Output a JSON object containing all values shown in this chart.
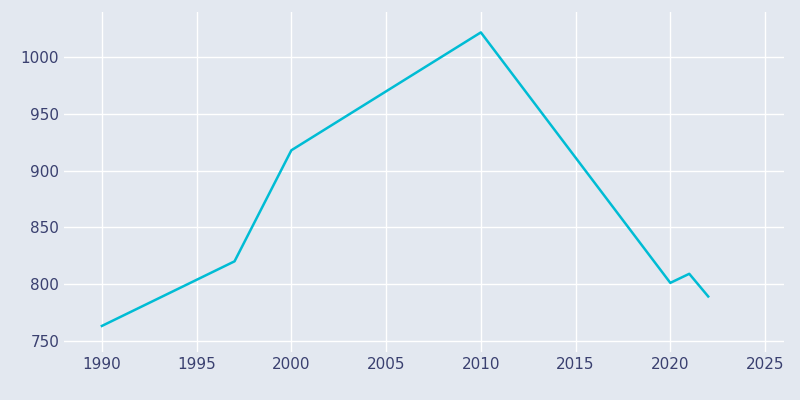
{
  "years": [
    1990,
    1997,
    2000,
    2010,
    2020,
    2021,
    2022
  ],
  "population": [
    763,
    820,
    918,
    1022,
    801,
    809,
    789
  ],
  "line_color": "#00BCD4",
  "background_color": "#E3E8F0",
  "grid_color": "#FFFFFF",
  "text_color": "#3A4070",
  "xlim": [
    1988,
    2026
  ],
  "ylim": [
    740,
    1040
  ],
  "xticks": [
    1990,
    1995,
    2000,
    2005,
    2010,
    2015,
    2020,
    2025
  ],
  "yticks": [
    750,
    800,
    850,
    900,
    950,
    1000
  ],
  "line_width": 1.8,
  "figsize": [
    8.0,
    4.0
  ],
  "dpi": 100
}
